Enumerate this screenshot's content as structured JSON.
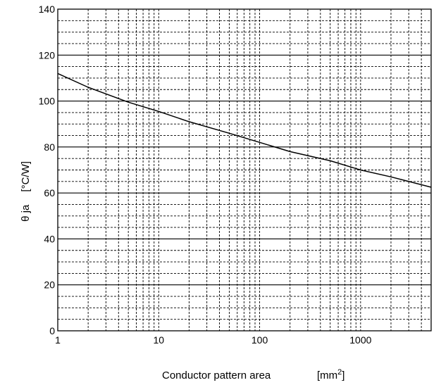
{
  "chart_data": {
    "type": "line",
    "title": "",
    "xlabel": "Conductor pattern area",
    "xlabel_unit_prefix": "[mm",
    "xlabel_unit_superscript": "2",
    "xlabel_unit_suffix": "]",
    "ylabel": "θ ja",
    "ylabel_unit": "[°C/W]",
    "xscale": "log",
    "xlim": [
      1,
      5000
    ],
    "ylim": [
      0,
      140
    ],
    "x_ticks": [
      1,
      10,
      100,
      1000
    ],
    "x_tick_labels": [
      "1",
      "10",
      "100",
      "1000"
    ],
    "y_ticks": [
      0,
      20,
      40,
      60,
      80,
      100,
      120,
      140
    ],
    "y_tick_labels": [
      "0",
      "20",
      "40",
      "60",
      "80",
      "100",
      "120",
      "140"
    ],
    "y_minor_step": 5,
    "grid": true,
    "line_color": "#000000",
    "series": [
      {
        "x": [
          1,
          2,
          5,
          10,
          20,
          50,
          100,
          200,
          500,
          1000,
          2000,
          5000
        ],
        "values": [
          112,
          106,
          99.5,
          95.5,
          91,
          86,
          82,
          78,
          74,
          70,
          67,
          62.5
        ]
      }
    ]
  }
}
